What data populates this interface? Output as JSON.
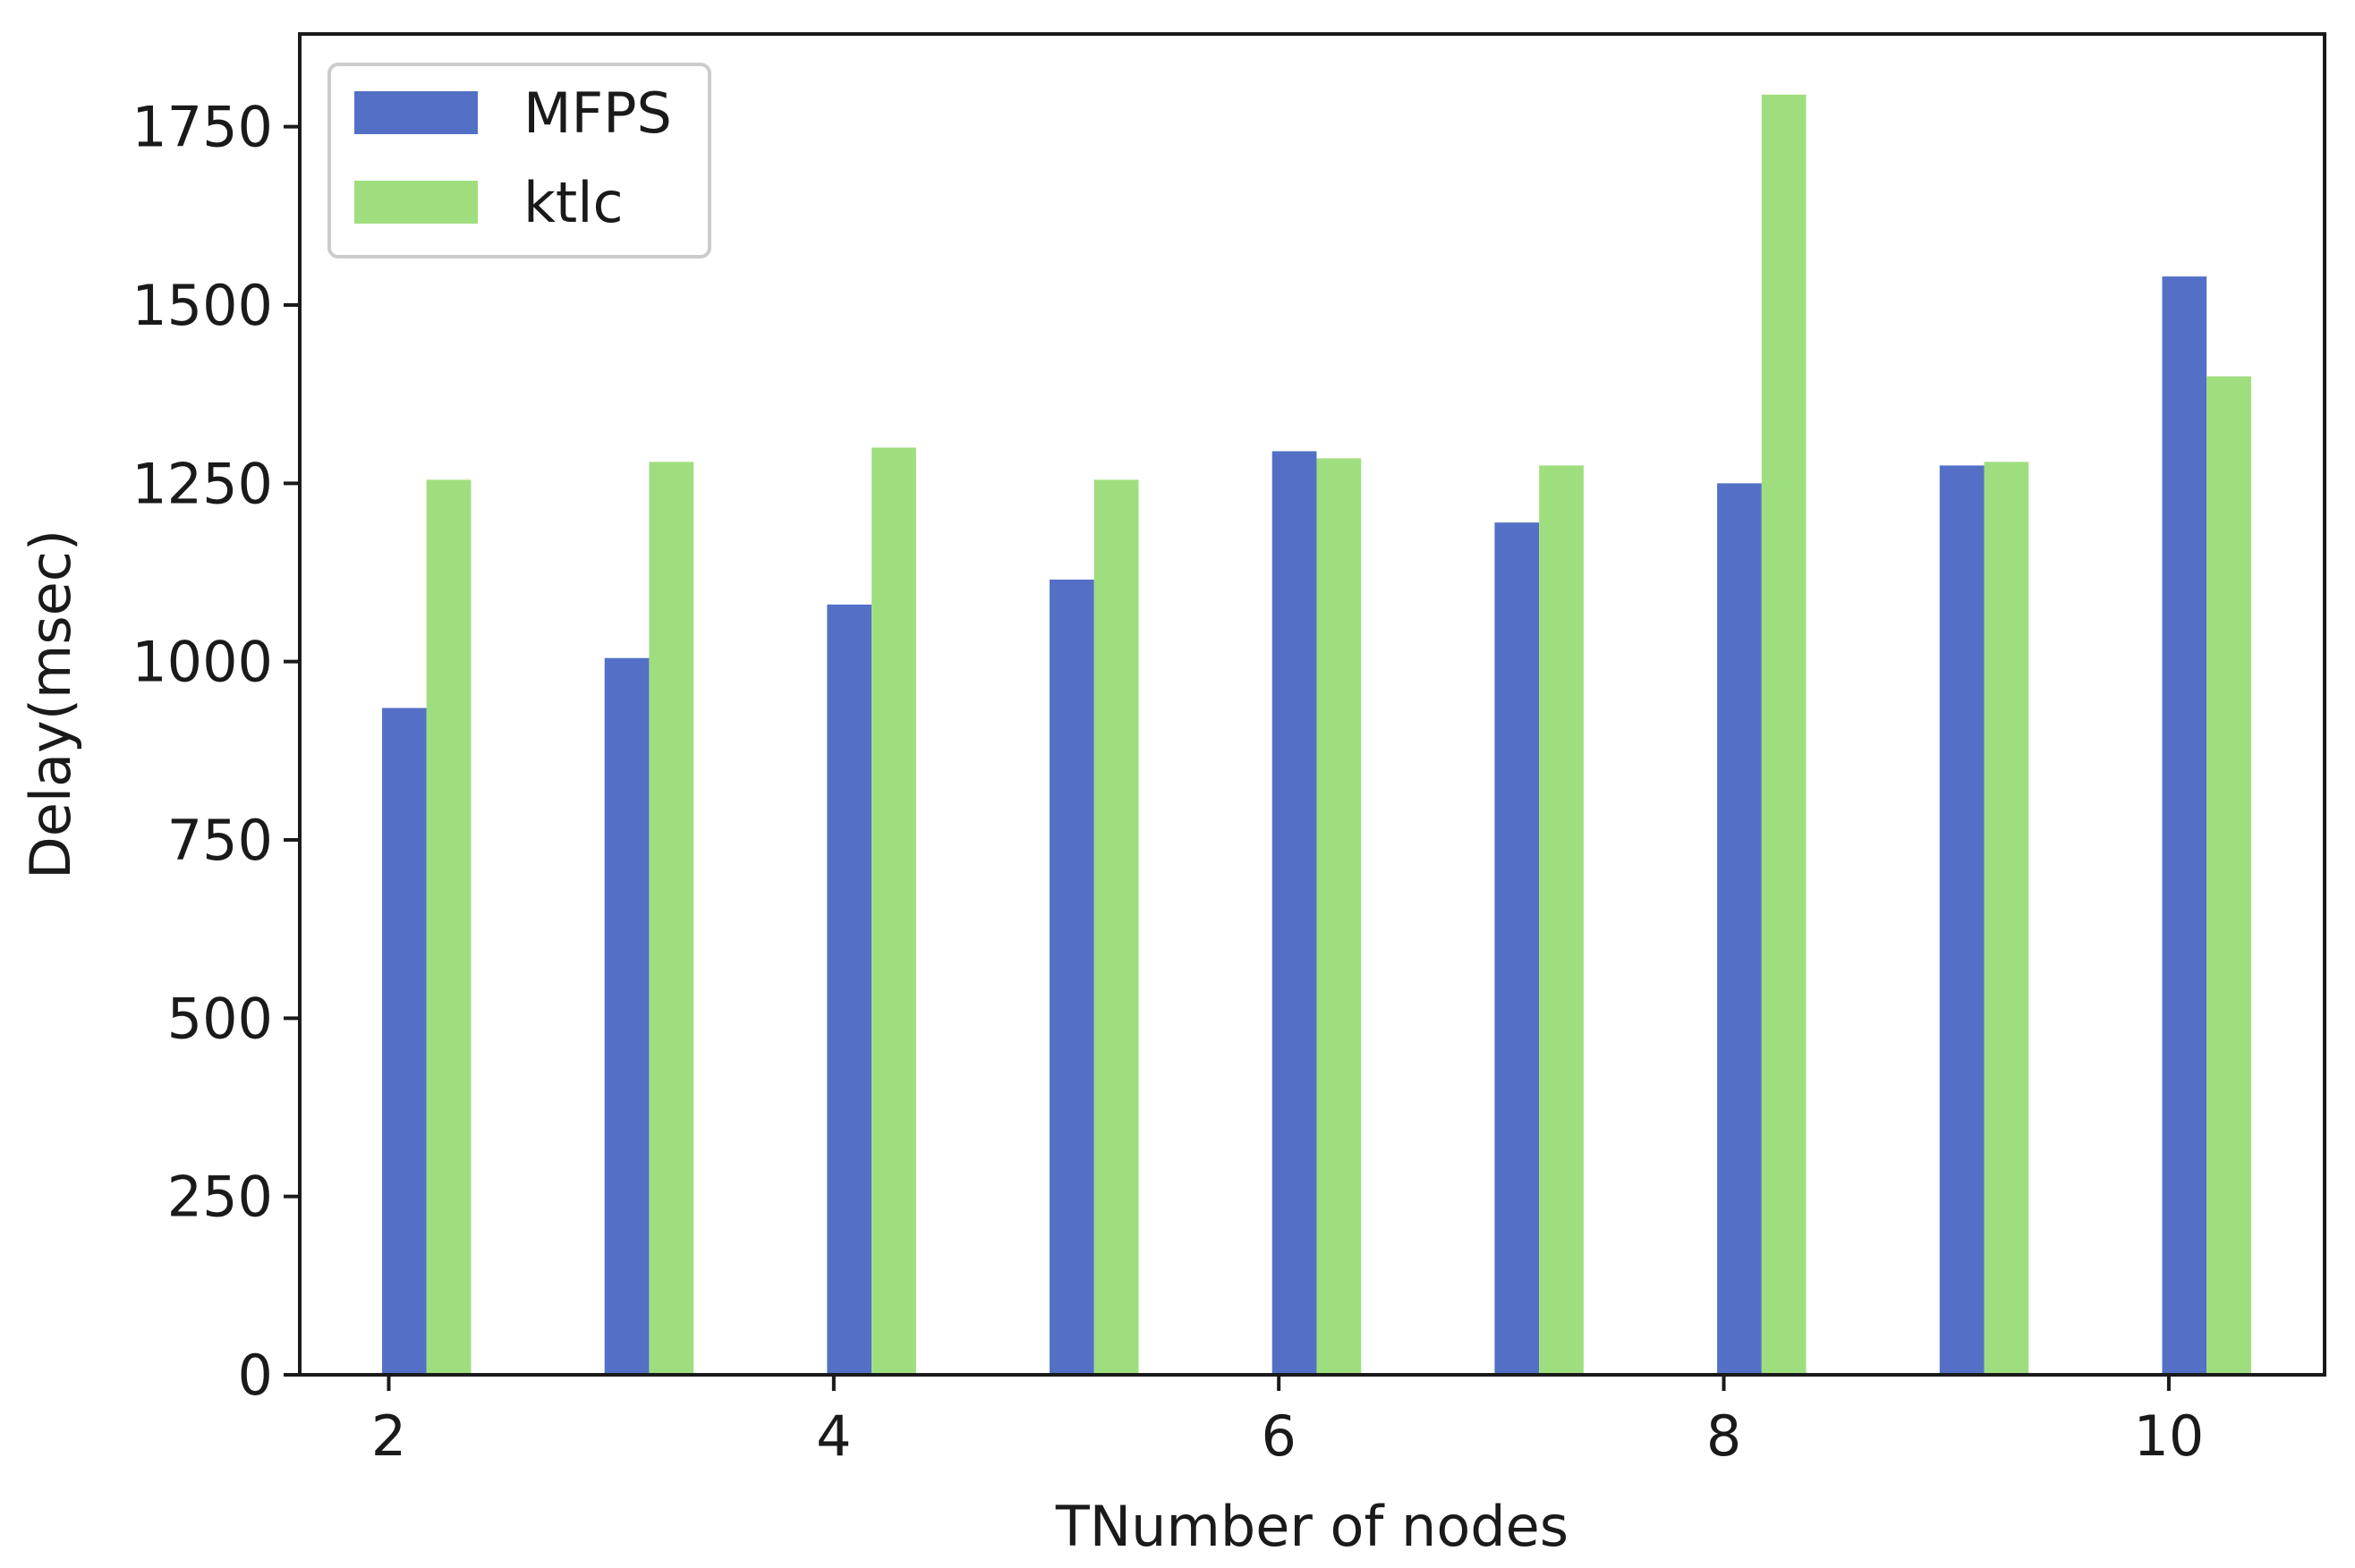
{
  "chart_data": {
    "type": "bar",
    "xlabel": "TNumber of nodes",
    "ylabel": "Delay(msec)",
    "x": [
      2,
      3,
      4,
      5,
      6,
      7,
      8,
      9,
      10
    ],
    "xlim": [
      1.6,
      10.7
    ],
    "ylim": [
      0,
      1880
    ],
    "xticks": [
      "2",
      "4",
      "6",
      "8",
      "10"
    ],
    "xtick_values": [
      2,
      4,
      6,
      8,
      10
    ],
    "yticks": [
      "0",
      "250",
      "500",
      "750",
      "1000",
      "1250",
      "1500",
      "1750"
    ],
    "ytick_values": [
      0,
      250,
      500,
      750,
      1000,
      1250,
      1500,
      1750
    ],
    "grid": false,
    "legend_position": "top-left",
    "series": [
      {
        "name": "MFPS",
        "color": "#5470c6",
        "values": [
          935,
          1005,
          1080,
          1115,
          1295,
          1195,
          1250,
          1275,
          1540
        ]
      },
      {
        "name": "ktlc",
        "color": "#9fde7e",
        "values": [
          1255,
          1280,
          1300,
          1255,
          1285,
          1275,
          1795,
          1280,
          1400
        ]
      }
    ]
  }
}
